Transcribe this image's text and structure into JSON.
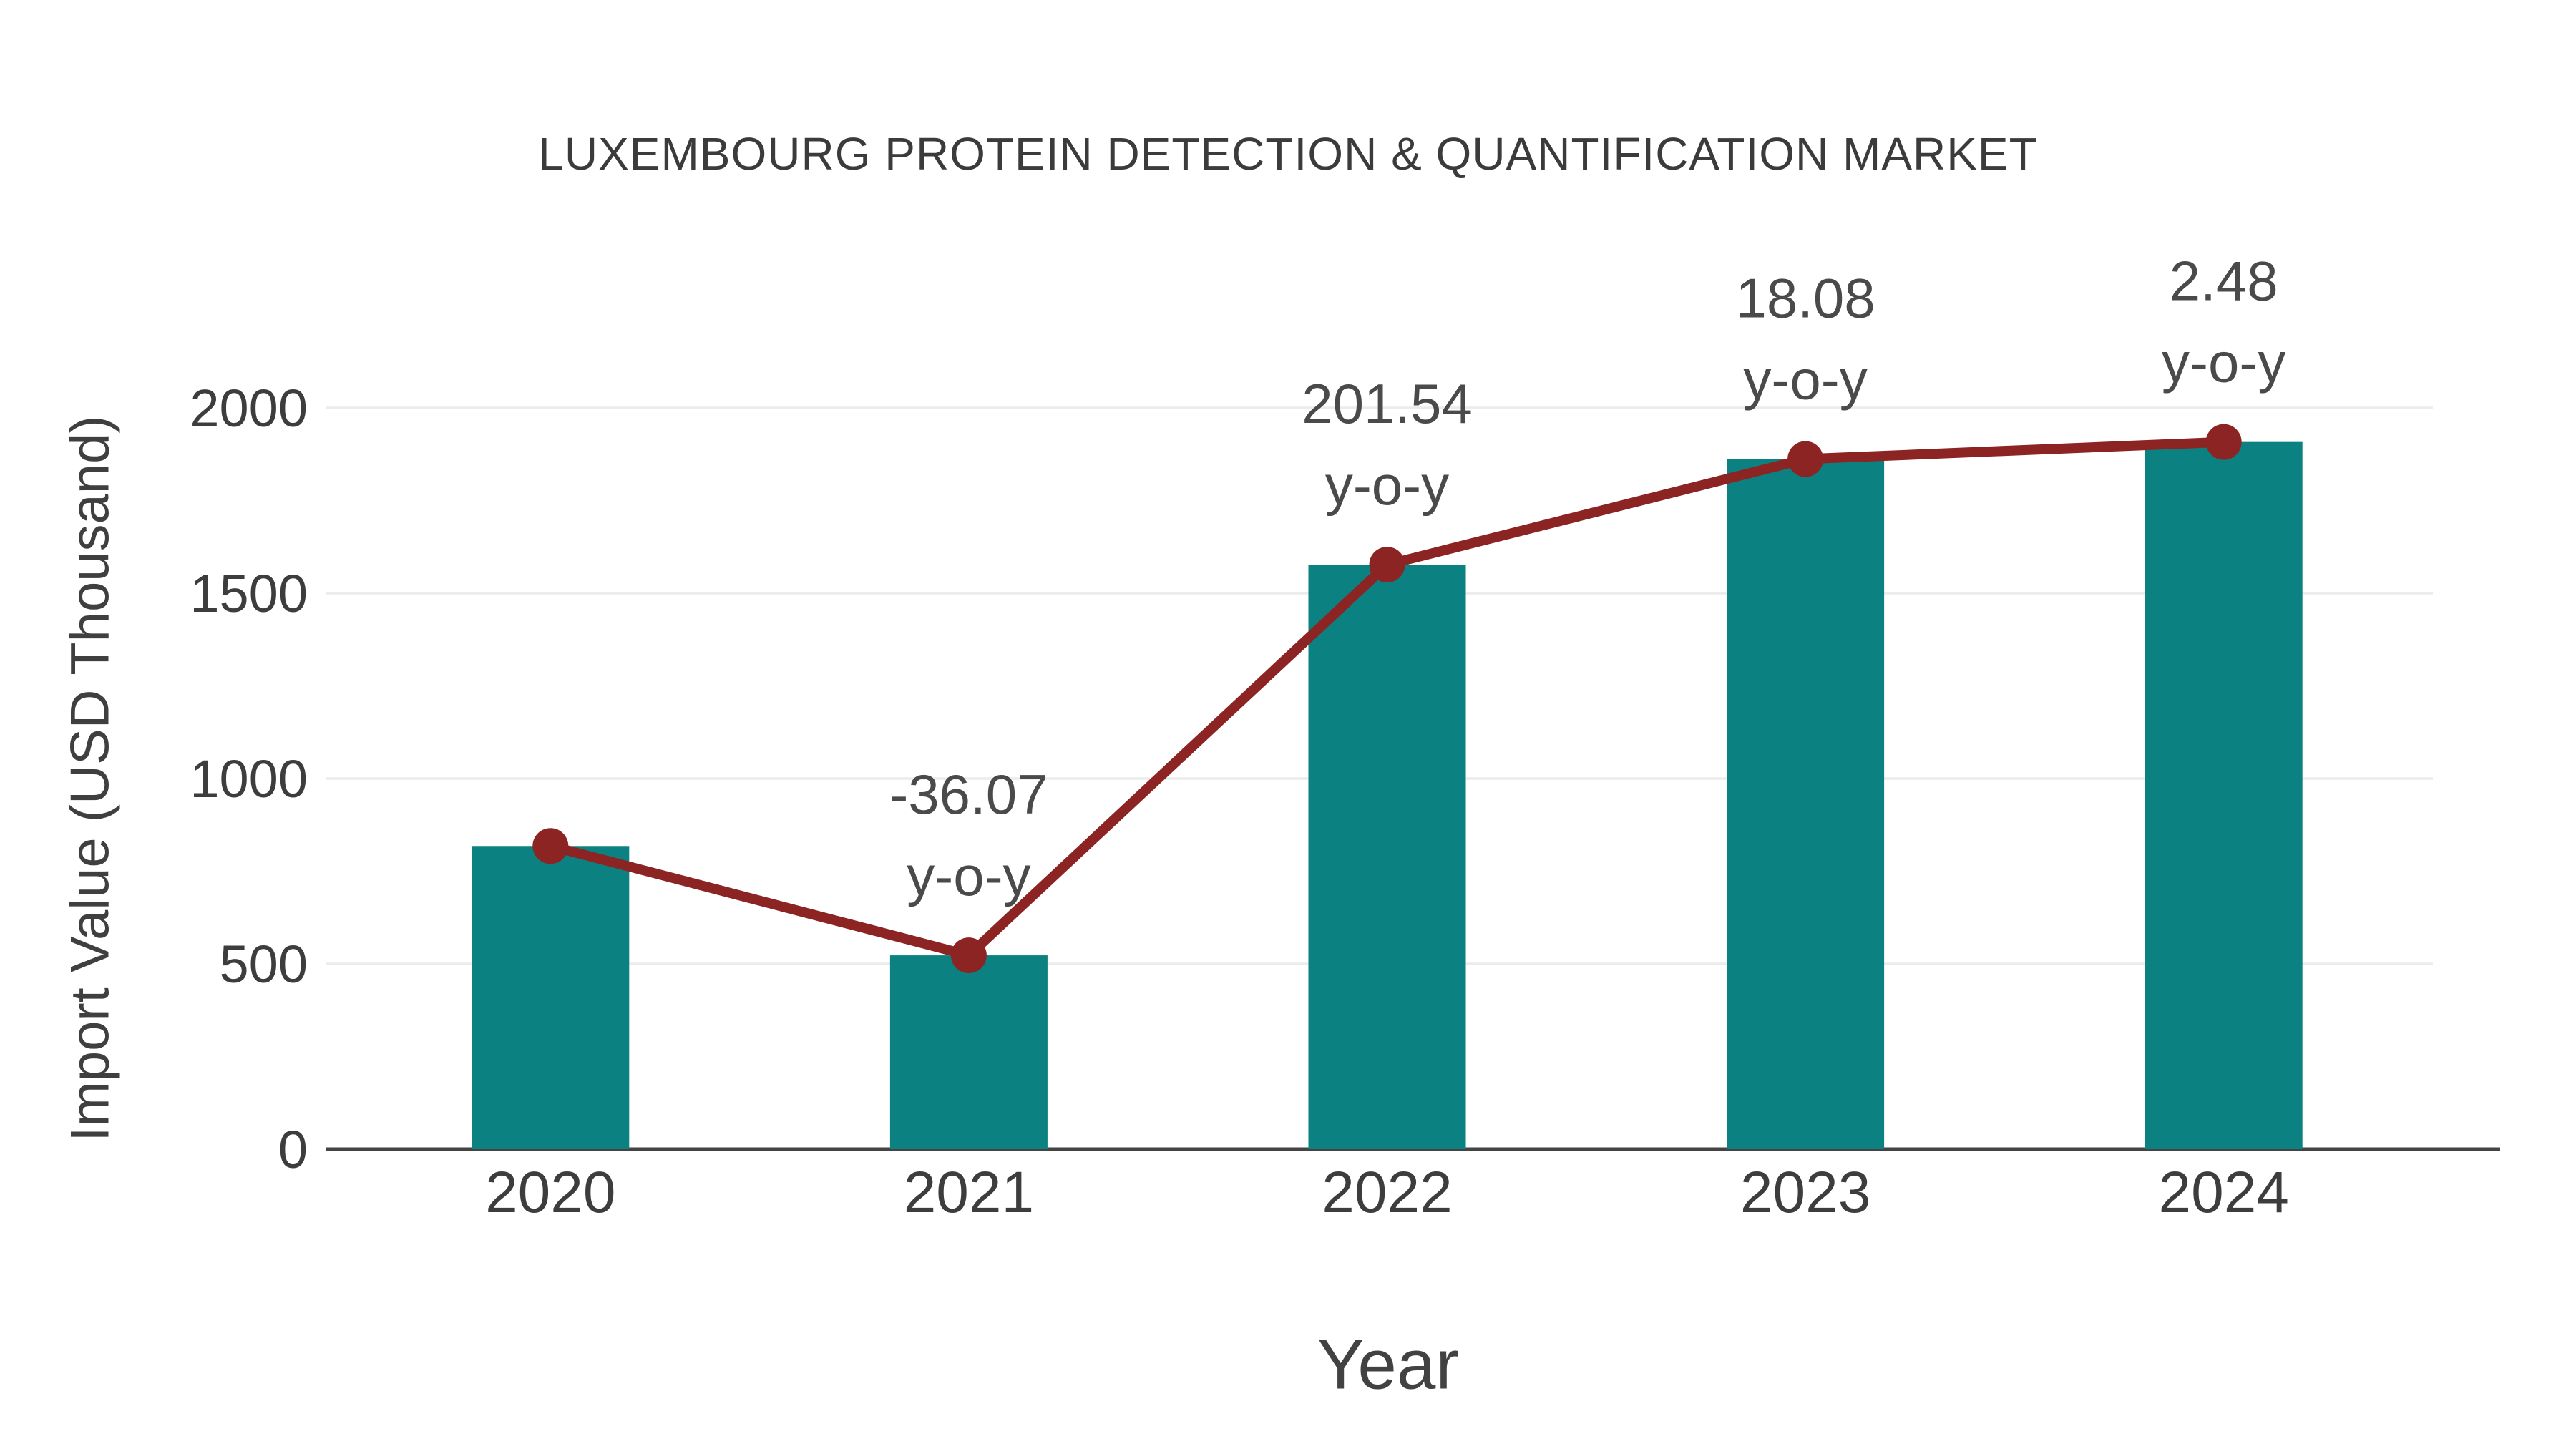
{
  "chart_data": {
    "type": "bar",
    "title": "LUXEMBOURG PROTEIN DETECTION & QUANTIFICATION MARKET",
    "xlabel": "Year",
    "ylabel": "Import Value (USD Thousand)",
    "categories": [
      "2020",
      "2021",
      "2022",
      "2023",
      "2024"
    ],
    "series": [
      {
        "name": "Import Value",
        "type": "bar",
        "color": "#0b8181",
        "values": [
          818,
          523,
          1577,
          1862,
          1908
        ]
      },
      {
        "name": "Trend",
        "type": "line",
        "color": "#8b2423",
        "values": [
          818,
          523,
          1577,
          1862,
          1908
        ]
      }
    ],
    "yoy_percent": [
      null,
      -36.07,
      201.54,
      18.08,
      2.48
    ],
    "annotations": [
      {
        "category": "2021",
        "lines": [
          "-36.07",
          "y-o-y"
        ]
      },
      {
        "category": "2022",
        "lines": [
          "201.54",
          "y-o-y"
        ]
      },
      {
        "category": "2023",
        "lines": [
          "18.08",
          "y-o-y"
        ]
      },
      {
        "category": "2024",
        "lines": [
          "2.48",
          "y-o-y"
        ]
      }
    ],
    "yticks": [
      0,
      500,
      1000,
      1500,
      2000
    ],
    "ylim": [
      0,
      2160
    ],
    "grid": true,
    "legend_position": "none",
    "colors": {
      "bar": "#0b8181",
      "line": "#8b2423",
      "grid": "#ececec",
      "axis": "#444444",
      "tick_text": "#3d3d3d",
      "annotation_text": "#4a4a4a",
      "background": "#ffffff"
    }
  }
}
